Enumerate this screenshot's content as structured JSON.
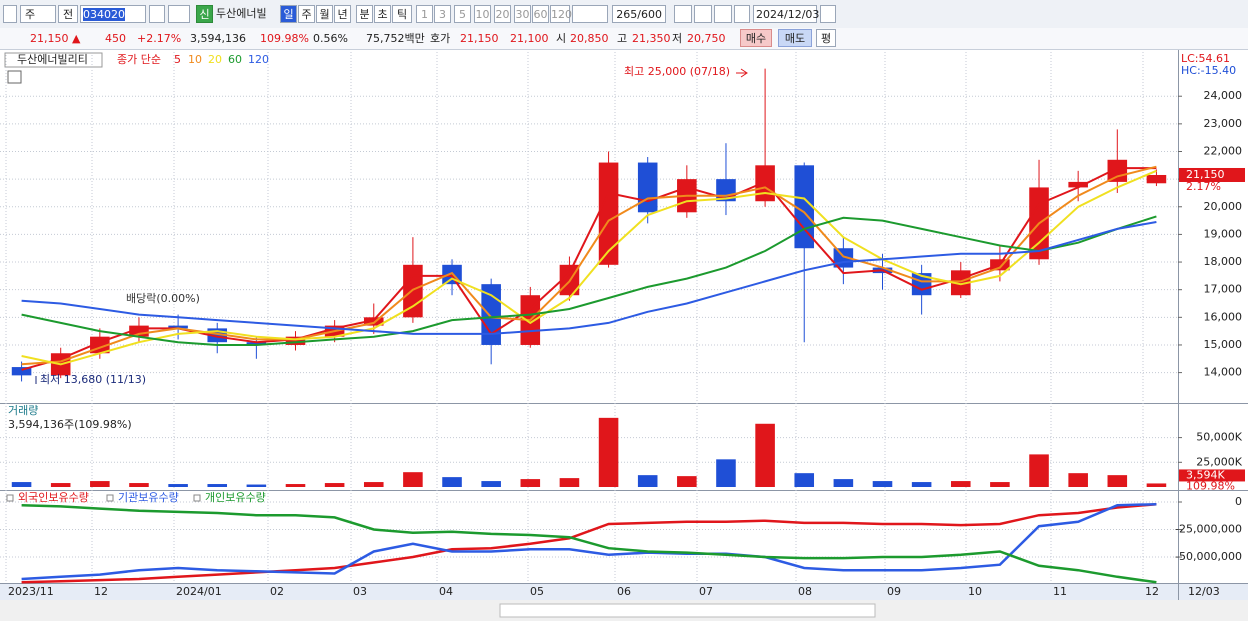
{
  "toolbar": {
    "market": "주",
    "scope": "전",
    "code": "034020",
    "new_badge": "신",
    "name": "두산에너빌",
    "periods": [
      "일",
      "주",
      "월",
      "년",
      "분",
      "초",
      "틱"
    ],
    "intervals": [
      "1",
      "3",
      "5",
      "10",
      "20",
      "30",
      "60",
      "120"
    ],
    "count": "265/600",
    "date": "2024/12/03"
  },
  "quote": {
    "price": "21,150 ▲",
    "change": "450",
    "change_pct": "+2.17%",
    "volume": "3,594,136",
    "volume_ratio": "109.98%",
    "turnover": "0.56%",
    "amount": "75,752백만",
    "ask_label": "호가",
    "ask": "21,150",
    "bid": "21,100",
    "open_label": "시",
    "open": "20,850",
    "high_label": "고",
    "high": "21,350",
    "low_label": "저",
    "low": "20,750",
    "buy": "매수",
    "sell": "매도",
    "avg": "평"
  },
  "chart_data": [
    {
      "type": "candlestick",
      "legend_title": "두산에너빌리티",
      "legend_label": "종가 단순",
      "up_color": "#e0161b",
      "down_color": "#1f4fd6",
      "open": [
        14200,
        13900,
        14700,
        15300,
        15700,
        15600,
        15100,
        15000,
        15300,
        15700,
        16000,
        17900,
        17200,
        15000,
        16800,
        17900,
        21600,
        19800,
        21000,
        20200,
        21500,
        18500,
        17800,
        17600,
        16800,
        17700,
        18100,
        20700,
        20900,
        20850
      ],
      "high": [
        14400,
        14900,
        15600,
        16000,
        16100,
        15800,
        15300,
        15500,
        15900,
        16500,
        18900,
        18100,
        17400,
        17100,
        18200,
        22000,
        21800,
        21500,
        22300,
        25000,
        21600,
        18900,
        18300,
        17900,
        18000,
        18600,
        21700,
        21300,
        22800,
        21350
      ],
      "low": [
        13680,
        13800,
        14500,
        15100,
        15200,
        14700,
        14500,
        14800,
        15100,
        15400,
        15800,
        16800,
        14300,
        14900,
        16600,
        17800,
        19400,
        19600,
        19700,
        20000,
        15100,
        17200,
        17000,
        16100,
        16700,
        17300,
        17900,
        20200,
        20500,
        20750
      ],
      "close": [
        13900,
        14700,
        15300,
        15700,
        15600,
        15100,
        15000,
        15300,
        15700,
        16000,
        17900,
        17200,
        15000,
        16800,
        17900,
        21600,
        19800,
        21000,
        20200,
        21500,
        18500,
        17800,
        17600,
        16800,
        17700,
        18100,
        20700,
        20900,
        21700,
        21150
      ],
      "series": [
        {
          "name": "5",
          "color": "#e0161b",
          "values": [
            14100,
            14500,
            15100,
            15600,
            15600,
            15300,
            15100,
            15200,
            15600,
            15900,
            17500,
            17500,
            15400,
            16300,
            17600,
            20500,
            20200,
            20700,
            20300,
            20900,
            19200,
            17600,
            17700,
            17000,
            17400,
            17900,
            20100,
            20700,
            21400,
            21400
          ]
        },
        {
          "name": "10",
          "color": "#f08a1c",
          "values": [
            14300,
            14400,
            14900,
            15400,
            15600,
            15400,
            15200,
            15200,
            15500,
            15800,
            17000,
            17600,
            16000,
            15900,
            17300,
            19500,
            20300,
            20400,
            20400,
            20700,
            19800,
            18200,
            17800,
            17300,
            17300,
            17800,
            19400,
            20400,
            21100,
            21450
          ]
        },
        {
          "name": "20",
          "color": "#f0e020",
          "values": [
            14600,
            14300,
            14700,
            15100,
            15400,
            15500,
            15300,
            15200,
            15300,
            15600,
            16400,
            17400,
            16800,
            15800,
            16700,
            18400,
            19700,
            20200,
            20300,
            20500,
            20300,
            18900,
            18100,
            17500,
            17200,
            17500,
            18700,
            20000,
            20700,
            21300
          ]
        },
        {
          "name": "60",
          "color": "#1c9a2e",
          "values": [
            16100,
            15800,
            15500,
            15300,
            15100,
            15000,
            15000,
            15100,
            15200,
            15300,
            15500,
            15900,
            16000,
            16100,
            16300,
            16700,
            17100,
            17400,
            17800,
            18400,
            19200,
            19600,
            19500,
            19200,
            18900,
            18600,
            18400,
            18700,
            19200,
            19650
          ]
        },
        {
          "name": "120",
          "color": "#2d5be3",
          "values": [
            16600,
            16500,
            16300,
            16100,
            16000,
            15900,
            15800,
            15700,
            15600,
            15500,
            15400,
            15400,
            15400,
            15500,
            15600,
            15800,
            16200,
            16500,
            16900,
            17300,
            17700,
            18000,
            18100,
            18200,
            18300,
            18300,
            18400,
            18800,
            19200,
            19450
          ]
        }
      ],
      "ylim": [
        12900,
        25600
      ],
      "yticks": [
        {
          "value": 14000,
          "label": "14,000"
        },
        {
          "value": 15000,
          "label": "15,000"
        },
        {
          "value": 16000,
          "label": "16,000"
        },
        {
          "value": 17000,
          "label": "17,000"
        },
        {
          "value": 18000,
          "label": "18,000"
        },
        {
          "value": 19000,
          "label": "19,000"
        },
        {
          "value": 20000,
          "label": "20,000"
        },
        {
          "value": 21000,
          "label": "21,000"
        },
        {
          "value": 22000,
          "label": "22,000"
        },
        {
          "value": 23000,
          "label": "23,000"
        },
        {
          "value": 24000,
          "label": "24,000"
        }
      ],
      "grid": true,
      "annotations": [
        {
          "text": "최고 25,000 (07/18)"
        },
        {
          "text": "최저 13,680 (11/13)"
        },
        {
          "text": "배당락(0.00%)"
        }
      ],
      "right_labels": {
        "lc": "LC:54.61",
        "hc": "HC:-15.40",
        "last_price": "21,150",
        "last_change": "2.17%"
      }
    },
    {
      "type": "bar",
      "title": "거래량",
      "subtitle": "3,594,136주(109.98%)",
      "values": [
        5000,
        4000,
        6000,
        4000,
        3000,
        3000,
        2500,
        3000,
        4000,
        5000,
        15000,
        10000,
        6000,
        8000,
        9000,
        70000,
        12000,
        11000,
        28000,
        64000,
        14000,
        8000,
        6000,
        5000,
        6000,
        5000,
        33000,
        14000,
        12000,
        3594
      ],
      "ylim": [
        0,
        83000
      ],
      "yticks": [
        {
          "value": 25000,
          "label": "25,000K"
        },
        {
          "value": 50000,
          "label": "50,000K"
        }
      ],
      "grid": true,
      "right_labels": {
        "last_volume": "3,594K",
        "last_ratio": "109.98%"
      }
    },
    {
      "type": "line",
      "series": [
        {
          "name": "외국인보유수량",
          "color": "#e0161b",
          "values": [
            -73000000,
            -72000000,
            -71000000,
            -70000000,
            -68000000,
            -66000000,
            -64000000,
            -62000000,
            -60000000,
            -55000000,
            -50000000,
            -43000000,
            -42000000,
            -38000000,
            -33000000,
            -20000000,
            -19000000,
            -18000000,
            -18000000,
            -17000000,
            -19000000,
            -19000000,
            -20000000,
            -20000000,
            -21000000,
            -20000000,
            -12000000,
            -10000000,
            -5000000,
            -2000000
          ]
        },
        {
          "name": "기관보유수량",
          "color": "#2d5be3",
          "values": [
            -70000000,
            -68000000,
            -66000000,
            -62000000,
            -60000000,
            -62000000,
            -63000000,
            -64000000,
            -65000000,
            -45000000,
            -38000000,
            -45000000,
            -45000000,
            -43000000,
            -43000000,
            -48000000,
            -46000000,
            -47000000,
            -47000000,
            -50000000,
            -60000000,
            -62000000,
            -62000000,
            -62000000,
            -60000000,
            -57000000,
            -22000000,
            -18000000,
            -3000000,
            -2000000
          ]
        },
        {
          "name": "개인보유수량",
          "color": "#1c9a2e",
          "values": [
            -3000000,
            -4000000,
            -6000000,
            -8000000,
            -9000000,
            -10000000,
            -12000000,
            -12000000,
            -14000000,
            -25000000,
            -28000000,
            -27000000,
            -29000000,
            -30000000,
            -32000000,
            -42000000,
            -45000000,
            -46000000,
            -48000000,
            -50000000,
            -51000000,
            -51000000,
            -50000000,
            -50000000,
            -48000000,
            -45000000,
            -58000000,
            -62000000,
            -68000000,
            -73000000
          ]
        }
      ],
      "ylim": [
        -73600000,
        10000000
      ],
      "yticks": [
        0,
        {
          "value": -25000000,
          "label": "-25,000,000"
        },
        {
          "value": -50000000,
          "label": "-50,000,000"
        }
      ],
      "grid": true
    }
  ],
  "time_axis": {
    "labels": [
      "2023/11",
      "12",
      "2024/01",
      "02",
      "03",
      "04",
      "05",
      "06",
      "07",
      "08",
      "09",
      "10",
      "11",
      "12"
    ],
    "last_date": "12/03"
  }
}
